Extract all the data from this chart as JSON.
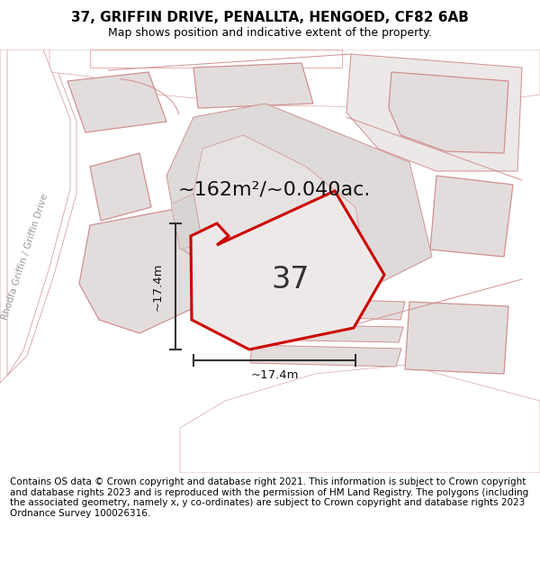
{
  "title": "37, GRIFFIN DRIVE, PENALLTA, HENGOED, CF82 6AB",
  "subtitle": "Map shows position and indicative extent of the property.",
  "area_label": "~162m²/~0.040ac.",
  "property_number": "37",
  "dim_h": "~17.4m",
  "dim_v": "~17.4m",
  "road_label": "Rhodfa Griffin / Griffin Drive",
  "footer": "Contains OS data © Crown copyright and database right 2021. This information is subject to Crown copyright and database rights 2023 and is reproduced with the permission of HM Land Registry. The polygons (including the associated geometry, namely x, y co-ordinates) are subject to Crown copyright and database rights 2023 Ordnance Survey 100026316.",
  "bg_color": "#ffffff",
  "map_bg": "#ffffff",
  "plot_fill": "#e0dcdc",
  "outline_color": "#cc0000",
  "pink_outline": "#e08080",
  "title_fontsize": 11,
  "subtitle_fontsize": 9,
  "footer_fontsize": 7.5
}
